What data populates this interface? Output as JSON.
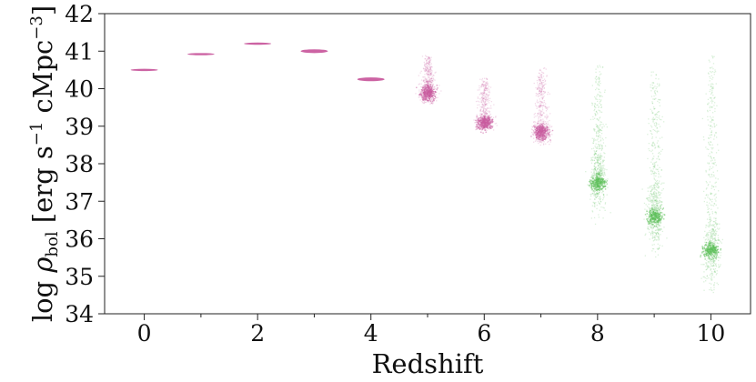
{
  "chart_data": {
    "type": "scatter",
    "xlabel": "Redshift",
    "ylabel": "log ρ_bol [erg s⁻¹ cMpc⁻³]",
    "ylabel_parts": {
      "prefix": "log ",
      "rho": "ρ",
      "sub": "bol",
      "bracket": " [erg s",
      "exp1": "−1",
      "mid": " cMpc",
      "exp2": "−3",
      "close": "]"
    },
    "xlim": [
      -0.7,
      10.7
    ],
    "ylim": [
      34,
      42
    ],
    "x_ticks": [
      0,
      2,
      4,
      6,
      8,
      10
    ],
    "x_minor_ticks": [
      1,
      3,
      5,
      7,
      9
    ],
    "y_ticks": [
      34,
      35,
      36,
      37,
      38,
      39,
      40,
      41,
      42
    ],
    "grid": false,
    "colors": {
      "magenta": "#c95b9e",
      "green": "#5dbf5a"
    },
    "distributions": [
      {
        "redshift": 0,
        "center": 40.5,
        "low": 40.47,
        "high": 40.53,
        "color": "magenta"
      },
      {
        "redshift": 1,
        "center": 40.92,
        "low": 40.89,
        "high": 40.95,
        "color": "magenta"
      },
      {
        "redshift": 2,
        "center": 41.2,
        "low": 41.17,
        "high": 41.23,
        "color": "magenta"
      },
      {
        "redshift": 3,
        "center": 41.0,
        "low": 40.95,
        "high": 41.05,
        "color": "magenta"
      },
      {
        "redshift": 4,
        "center": 40.25,
        "low": 40.2,
        "high": 40.3,
        "color": "magenta"
      },
      {
        "redshift": 5,
        "center": 39.9,
        "low": 39.6,
        "high": 40.9,
        "color": "magenta"
      },
      {
        "redshift": 6,
        "center": 39.1,
        "low": 38.9,
        "high": 40.3,
        "color": "magenta"
      },
      {
        "redshift": 7,
        "center": 38.85,
        "low": 38.5,
        "high": 40.6,
        "color": "magenta"
      },
      {
        "redshift": 8,
        "center": 37.5,
        "low": 36.4,
        "high": 40.7,
        "color": "green"
      },
      {
        "redshift": 9,
        "center": 36.6,
        "low": 35.4,
        "high": 40.5,
        "color": "green"
      },
      {
        "redshift": 10,
        "center": 35.7,
        "low": 34.5,
        "high": 40.9,
        "color": "green"
      }
    ]
  }
}
